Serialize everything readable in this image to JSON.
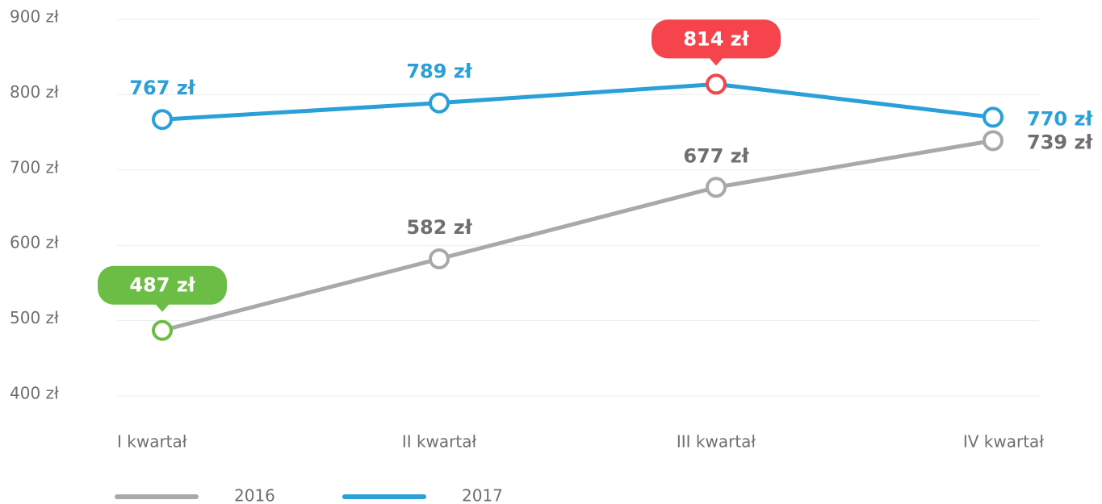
{
  "chart_data": {
    "type": "line",
    "categories": [
      "I kwartał",
      "II kwartał",
      "III kwartał",
      "IV kwartał"
    ],
    "series": [
      {
        "name": "2016",
        "color": "#a9a8ad",
        "label_color": "#6f6f6f",
        "values": [
          487,
          582,
          677,
          739
        ],
        "value_labels": [
          "487 zł",
          "582 zł",
          "677 zł",
          "739 zł"
        ]
      },
      {
        "name": "2017",
        "color": "#2a9fd8",
        "label_color": "#2a9fd8",
        "values": [
          767,
          789,
          814,
          770
        ],
        "value_labels": [
          "767 zł",
          "789 zł",
          "814 zł",
          "770 zł"
        ]
      }
    ],
    "ylim": [
      400,
      900
    ],
    "yticks": [
      {
        "value": 400,
        "label": "400 zł"
      },
      {
        "value": 500,
        "label": "500 zł"
      },
      {
        "value": 600,
        "label": "600 zł"
      },
      {
        "value": 700,
        "label": "700 zł"
      },
      {
        "value": 800,
        "label": "800 zł"
      },
      {
        "value": 900,
        "label": "900 zł"
      }
    ],
    "grid": true,
    "min_color": "#6cbd45",
    "max_color": "#f5444b",
    "legend": "bottom"
  }
}
